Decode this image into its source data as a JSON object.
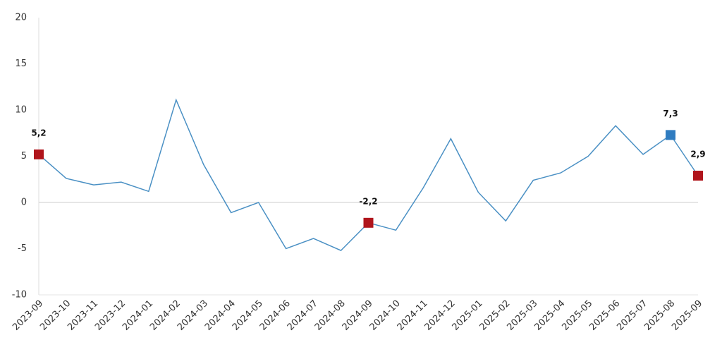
{
  "chart_data": {
    "type": "line",
    "categories": [
      "2023-09",
      "2023-10",
      "2023-11",
      "2023-12",
      "2024-01",
      "2024-02",
      "2024-03",
      "2024-04",
      "2024-05",
      "2024-06",
      "2024-07",
      "2024-08",
      "2024-09",
      "2024-10",
      "2024-11",
      "2024-12",
      "2025-01",
      "2025-02",
      "2025-03",
      "2025-04",
      "2025-05",
      "2025-06",
      "2025-07",
      "2025-08",
      "2025-09"
    ],
    "values": [
      5.2,
      2.6,
      1.9,
      2.2,
      1.2,
      11.1,
      4.1,
      -1.1,
      0.0,
      -5.0,
      -3.9,
      -5.2,
      -2.2,
      -3.0,
      1.6,
      6.9,
      1.1,
      -2.0,
      2.4,
      3.2,
      5.0,
      8.3,
      5.2,
      7.3,
      2.9
    ],
    "value_labels": [
      "5,2",
      null,
      null,
      null,
      null,
      null,
      null,
      null,
      null,
      null,
      null,
      null,
      "-2,2",
      null,
      null,
      null,
      null,
      null,
      null,
      null,
      null,
      null,
      null,
      "7,3",
      "2,9"
    ],
    "marker_colors": [
      "#b0151c",
      null,
      null,
      null,
      null,
      null,
      null,
      null,
      null,
      null,
      null,
      null,
      "#b0151c",
      null,
      null,
      null,
      null,
      null,
      null,
      null,
      null,
      null,
      null,
      "#2f7cc0",
      "#b0151c"
    ],
    "color": "#4a90c4",
    "ylim": [
      -10,
      20
    ],
    "yticks": [
      -10,
      -5,
      0,
      5,
      10,
      15,
      20
    ],
    "zero_line": true
  }
}
